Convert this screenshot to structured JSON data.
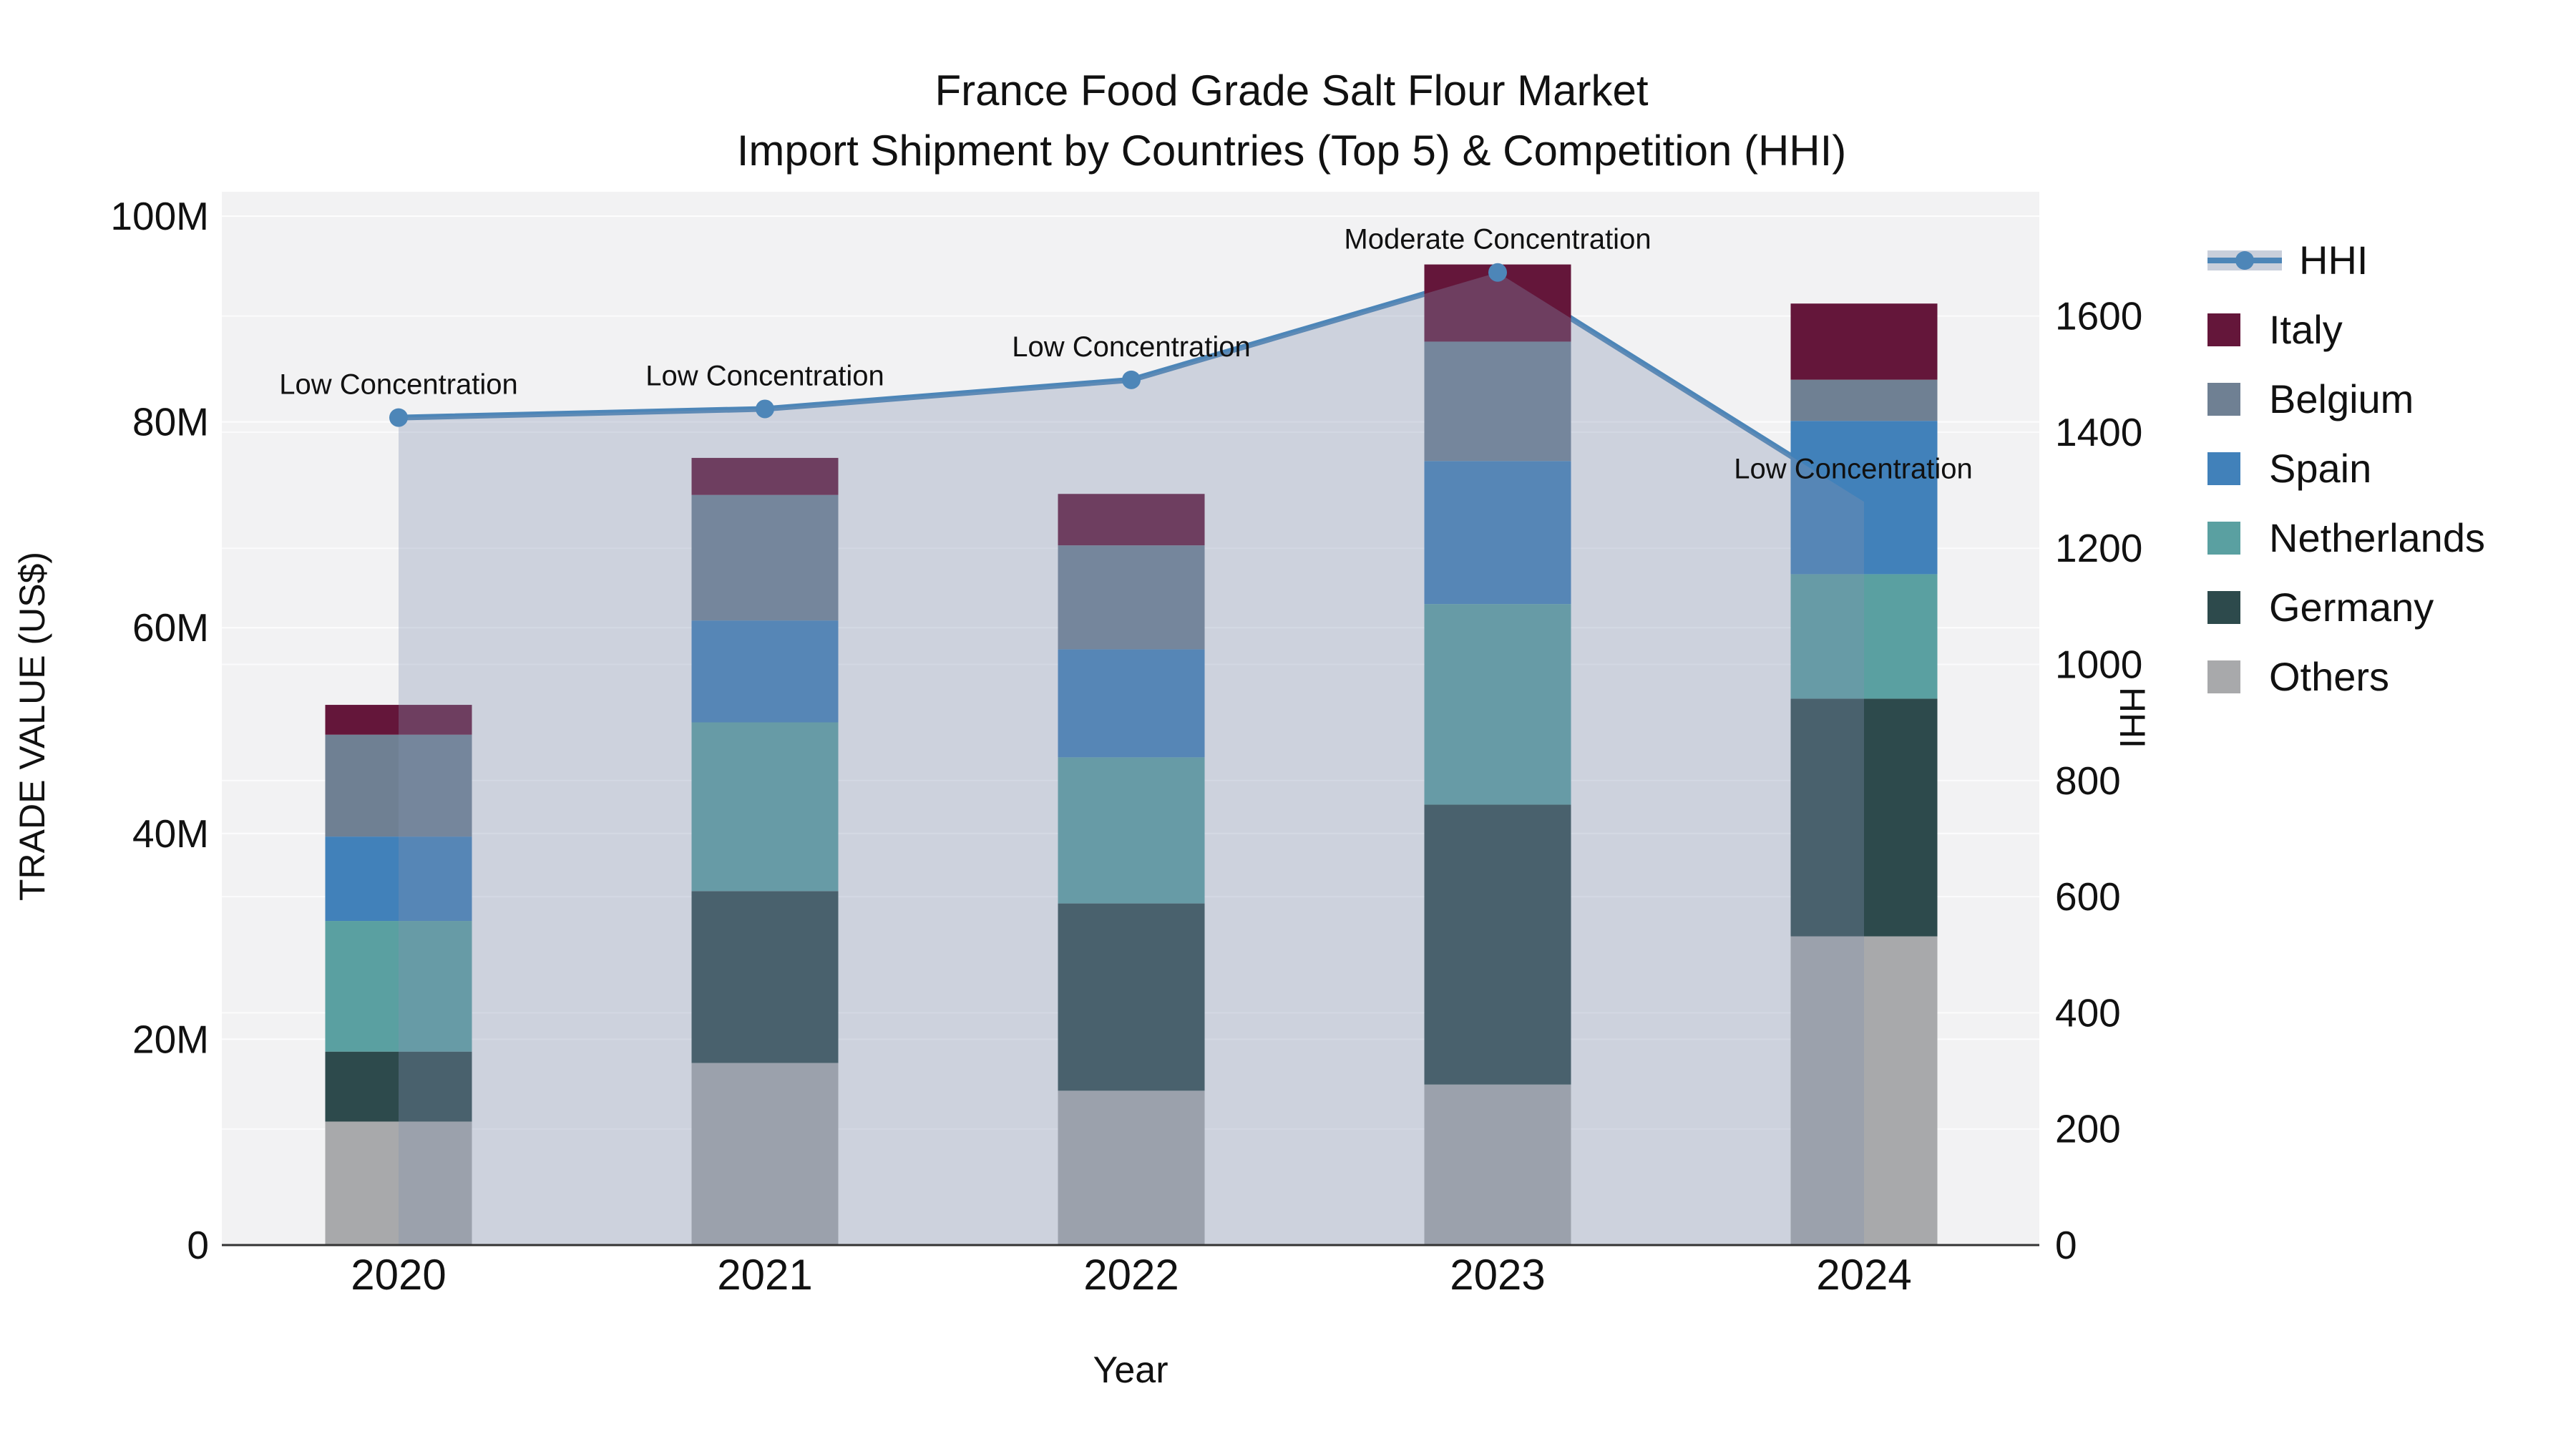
{
  "figure": {
    "title": "France Food Grade Salt Flour Market",
    "subtitle": "Import Shipment by Countries (Top 5) & Competition (HHI)"
  },
  "chart_data": {
    "type": "bar",
    "subtype": "stacked-bars-with-hhi-line-and-area-fill",
    "title": "France Food Grade Salt Flour Market",
    "subtitle": "Import Shipment by Countries (Top 5) & Competition (HHI)",
    "xlabel": "Year",
    "ylabel": "TRADE VALUE (US$)",
    "ylabel_right": "HHI",
    "categories": [
      "2020",
      "2021",
      "2022",
      "2023",
      "2024"
    ],
    "series": [
      {
        "name": "Others",
        "color": "#a8a9ab",
        "values": [
          12.0,
          17.7,
          15.0,
          15.6,
          30.0
        ]
      },
      {
        "name": "Germany",
        "color": "#2d4a4c",
        "values": [
          6.8,
          16.7,
          18.2,
          27.2,
          23.1
        ]
      },
      {
        "name": "Netherlands",
        "color": "#5aa0a1",
        "values": [
          12.7,
          16.4,
          14.2,
          19.5,
          12.1
        ]
      },
      {
        "name": "Spain",
        "color": "#4181ba",
        "values": [
          8.2,
          9.9,
          10.5,
          13.9,
          14.9
        ]
      },
      {
        "name": "Belgium",
        "color": "#6f8093",
        "values": [
          9.9,
          12.2,
          10.1,
          11.6,
          4.0
        ]
      },
      {
        "name": "Italy",
        "color": "#64163a",
        "values": [
          2.9,
          3.6,
          5.0,
          7.5,
          7.4
        ]
      }
    ],
    "bar_totals": [
      52.5,
      76.5,
      73.0,
      95.3,
      91.5
    ],
    "line_series": {
      "name": "HHI",
      "color": "#4d86b8",
      "fill_color": "rgba(131,146,176,0.33)",
      "values": [
        1425,
        1440,
        1490,
        1675,
        1280
      ]
    },
    "annotations": [
      {
        "x": "2020",
        "text": "Low Concentration"
      },
      {
        "x": "2021",
        "text": "Low Concentration"
      },
      {
        "x": "2022",
        "text": "Low Concentration"
      },
      {
        "x": "2023",
        "text": "Moderate Concentration"
      },
      {
        "x": "2024",
        "text": "Low Concentration"
      }
    ],
    "axes": {
      "y_left": {
        "label": "TRADE VALUE (US$)",
        "range": [
          0,
          102
        ],
        "tick_values": [
          0,
          20,
          40,
          60,
          80,
          100
        ],
        "tick_labels": [
          "0",
          "20M",
          "40M",
          "60M",
          "80M",
          "100M"
        ]
      },
      "y_right": {
        "label": "HHI",
        "range": [
          0,
          1815
        ],
        "tick_values": [
          0,
          200,
          400,
          600,
          800,
          1000,
          1200,
          1400,
          1600
        ],
        "tick_labels": [
          "0",
          "200",
          "400",
          "600",
          "800",
          "1000",
          "1200",
          "1400",
          "1600"
        ]
      },
      "x": {
        "label": "Year"
      }
    },
    "legend": {
      "position": "right",
      "items": [
        "HHI",
        "Italy",
        "Belgium",
        "Spain",
        "Netherlands",
        "Germany",
        "Others"
      ]
    },
    "plot_background": "#f2f2f3",
    "grid_color": "#ffffff"
  }
}
